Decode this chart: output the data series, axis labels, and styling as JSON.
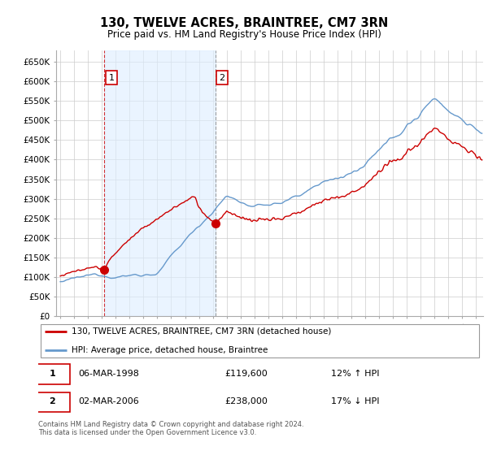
{
  "title": "130, TWELVE ACRES, BRAINTREE, CM7 3RN",
  "subtitle": "Price paid vs. HM Land Registry's House Price Index (HPI)",
  "ylabel_ticks": [
    "£0",
    "£50K",
    "£100K",
    "£150K",
    "£200K",
    "£250K",
    "£300K",
    "£350K",
    "£400K",
    "£450K",
    "£500K",
    "£550K",
    "£600K",
    "£650K"
  ],
  "ytick_values": [
    0,
    50000,
    100000,
    150000,
    200000,
    250000,
    300000,
    350000,
    400000,
    450000,
    500000,
    550000,
    600000,
    650000
  ],
  "ylim": [
    0,
    680000
  ],
  "xlim_start": 1994.7,
  "xlim_end": 2025.5,
  "red_line_color": "#cc0000",
  "blue_line_color": "#6699cc",
  "blue_fill_color": "#ddeeff",
  "grid_color": "#cccccc",
  "bg_color": "#ffffff",
  "sale1_x": 1998.18,
  "sale1_y": 119600,
  "sale1_label": "1",
  "sale2_x": 2006.17,
  "sale2_y": 238000,
  "sale2_label": "2",
  "legend_red_label": "130, TWELVE ACRES, BRAINTREE, CM7 3RN (detached house)",
  "legend_blue_label": "HPI: Average price, detached house, Braintree",
  "table_row1": [
    "1",
    "06-MAR-1998",
    "£119,600",
    "12% ↑ HPI"
  ],
  "table_row2": [
    "2",
    "02-MAR-2006",
    "£238,000",
    "17% ↓ HPI"
  ],
  "footer": "Contains HM Land Registry data © Crown copyright and database right 2024.\nThis data is licensed under the Open Government Licence v3.0."
}
